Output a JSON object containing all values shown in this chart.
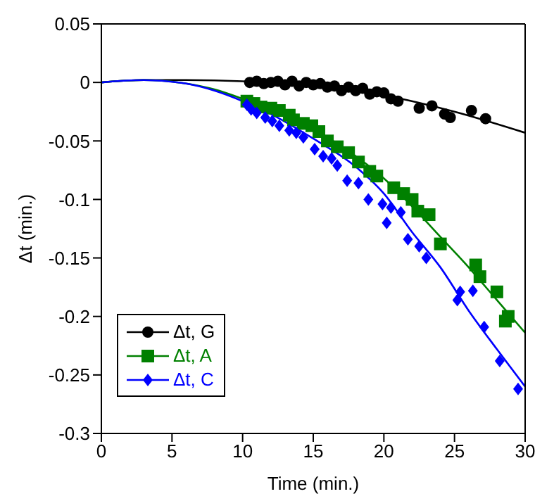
{
  "chart_data": {
    "type": "scatter",
    "xlabel": "Time (min.)",
    "ylabel": "Δt (min.)",
    "xlim": [
      0,
      30
    ],
    "xticks": [
      0,
      5,
      10,
      15,
      20,
      25,
      30
    ],
    "ylim": [
      -0.3,
      0.05
    ],
    "yticks": [
      -0.3,
      -0.25,
      -0.2,
      -0.15,
      -0.1,
      -0.05,
      0,
      0.05
    ],
    "grid": false,
    "legend": "bottom left",
    "series": [
      {
        "name": "Δt, G",
        "marker": "circle",
        "color": "#000000",
        "x": [
          10.5,
          11,
          11.5,
          12,
          12.5,
          13,
          13.5,
          14,
          14.5,
          15,
          15.5,
          16,
          16.5,
          17,
          17.5,
          18,
          18.5,
          19,
          19.5,
          20,
          20.5,
          21,
          22.5,
          23.4,
          24.3,
          24.7,
          26.2,
          27.2
        ],
        "values": [
          0,
          0.001,
          -0.001,
          0,
          0.001,
          -0.002,
          0.001,
          -0.003,
          0,
          -0.002,
          -0.001,
          -0.004,
          -0.003,
          -0.007,
          -0.004,
          -0.007,
          -0.005,
          -0.01,
          -0.008,
          -0.009,
          -0.014,
          -0.016,
          -0.022,
          -0.02,
          -0.027,
          -0.03,
          -0.024,
          -0.031
        ]
      },
      {
        "name": "Δt, A",
        "marker": "square",
        "color": "#008000",
        "x": [
          10.3,
          10.8,
          11.3,
          12,
          12.6,
          13.3,
          13.6,
          14.3,
          14.9,
          15.4,
          16,
          16.7,
          17.5,
          18.2,
          19,
          19.5,
          20.7,
          21.4,
          22,
          22.4,
          23.2,
          24,
          26.5,
          26.8,
          28,
          28.6,
          28.8
        ],
        "values": [
          -0.016,
          -0.018,
          -0.021,
          -0.022,
          -0.024,
          -0.028,
          -0.032,
          -0.035,
          -0.037,
          -0.042,
          -0.05,
          -0.055,
          -0.06,
          -0.068,
          -0.076,
          -0.08,
          -0.09,
          -0.095,
          -0.1,
          -0.11,
          -0.113,
          -0.138,
          -0.156,
          -0.166,
          -0.179,
          -0.204,
          -0.2
        ]
      },
      {
        "name": "Δt, C",
        "marker": "diamond",
        "color": "#0000ff",
        "x": [
          10.3,
          10.6,
          11,
          11.6,
          12.1,
          12.6,
          13.3,
          13.8,
          14.3,
          15.1,
          15.7,
          16.3,
          16.7,
          17.4,
          18.2,
          18.9,
          19.9,
          20.2,
          20.5,
          21.2,
          21.7,
          22.5,
          23,
          25.2,
          25.4,
          26.3,
          27.1,
          28.2,
          29.5
        ],
        "values": [
          -0.019,
          -0.023,
          -0.026,
          -0.03,
          -0.033,
          -0.037,
          -0.041,
          -0.043,
          -0.047,
          -0.057,
          -0.063,
          -0.065,
          -0.071,
          -0.084,
          -0.086,
          -0.1,
          -0.104,
          -0.12,
          -0.107,
          -0.111,
          -0.134,
          -0.14,
          -0.15,
          -0.186,
          -0.179,
          -0.178,
          -0.209,
          -0.238,
          -0.262
        ]
      },
      {
        "type": "line",
        "marker": "none",
        "color": "#000000",
        "x": [
          0,
          3,
          6,
          10,
          15,
          20,
          25,
          30
        ],
        "values": [
          0,
          0.002,
          0.002,
          0.001,
          -0.003,
          -0.011,
          -0.025,
          -0.043
        ]
      },
      {
        "type": "line",
        "marker": "none",
        "color": "#008000",
        "x": [
          0,
          3,
          6,
          8,
          10,
          12,
          15,
          18,
          20,
          22,
          24,
          26,
          28,
          30
        ],
        "values": [
          0,
          0.002,
          -0.001,
          -0.006,
          -0.014,
          -0.023,
          -0.04,
          -0.063,
          -0.082,
          -0.106,
          -0.132,
          -0.158,
          -0.186,
          -0.214
        ]
      },
      {
        "type": "line",
        "marker": "none",
        "color": "#0000ff",
        "x": [
          0,
          3,
          6,
          8,
          10,
          12,
          15,
          18,
          20,
          22,
          24,
          26,
          28,
          30
        ],
        "values": [
          0,
          0.002,
          -0.001,
          -0.007,
          -0.016,
          -0.027,
          -0.048,
          -0.072,
          -0.095,
          -0.128,
          -0.158,
          -0.195,
          -0.228,
          -0.26
        ]
      }
    ]
  }
}
